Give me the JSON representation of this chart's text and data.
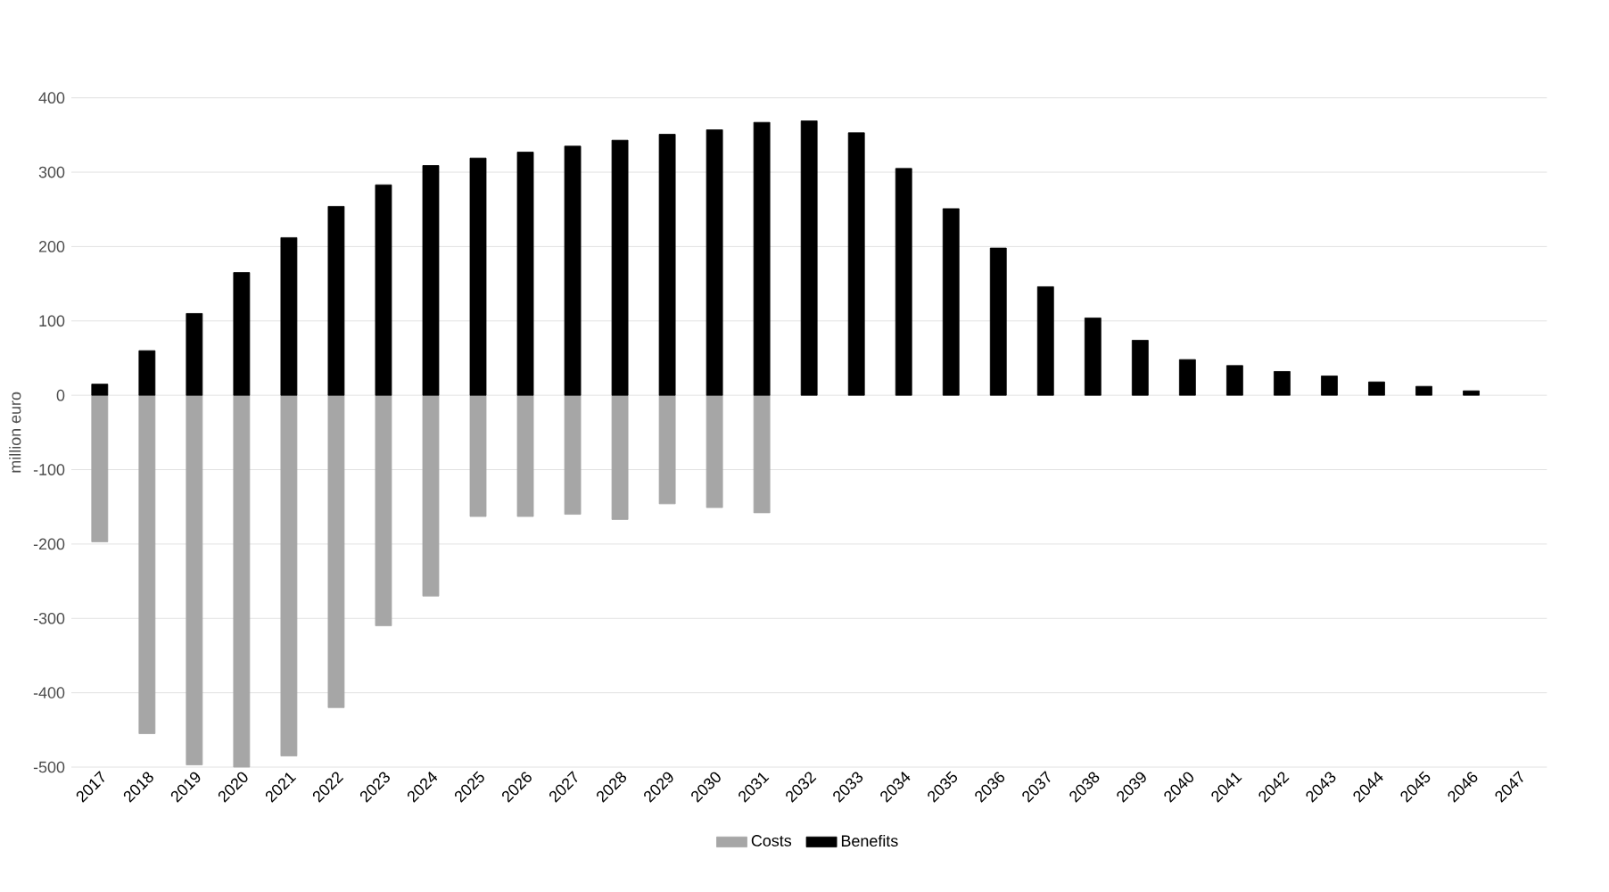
{
  "chart_data": {
    "type": "bar",
    "ylabel": "million euro",
    "categories": [
      "2017",
      "2018",
      "2019",
      "2020",
      "2021",
      "2022",
      "2023",
      "2024",
      "2025",
      "2026",
      "2027",
      "2028",
      "2029",
      "2030",
      "2031",
      "2032",
      "2033",
      "2034",
      "2035",
      "2036",
      "2037",
      "2038",
      "2039",
      "2040",
      "2041",
      "2042",
      "2043",
      "2044",
      "2045",
      "2046",
      "2047"
    ],
    "series": [
      {
        "name": "Costs",
        "color": "#a6a6a6",
        "values": [
          -197,
          -455,
          -497,
          -500,
          -485,
          -420,
          -310,
          -270,
          -163,
          -163,
          -160,
          -167,
          -146,
          -151,
          -158,
          null,
          null,
          null,
          null,
          null,
          null,
          null,
          null,
          null,
          null,
          null,
          null,
          null,
          null,
          null,
          null
        ]
      },
      {
        "name": "Benefits",
        "color": "#000000",
        "values": [
          15,
          60,
          110,
          165,
          212,
          254,
          283,
          309,
          319,
          327,
          335,
          343,
          351,
          357,
          367,
          369,
          353,
          305,
          251,
          198,
          146,
          104,
          74,
          48,
          40,
          32,
          26,
          18,
          12,
          6,
          null
        ]
      }
    ],
    "ylim": [
      -500,
      400
    ],
    "yticks": [
      -500,
      -400,
      -300,
      -200,
      -100,
      0,
      100,
      200,
      300,
      400
    ],
    "grid": "y",
    "legend": "bottom"
  }
}
